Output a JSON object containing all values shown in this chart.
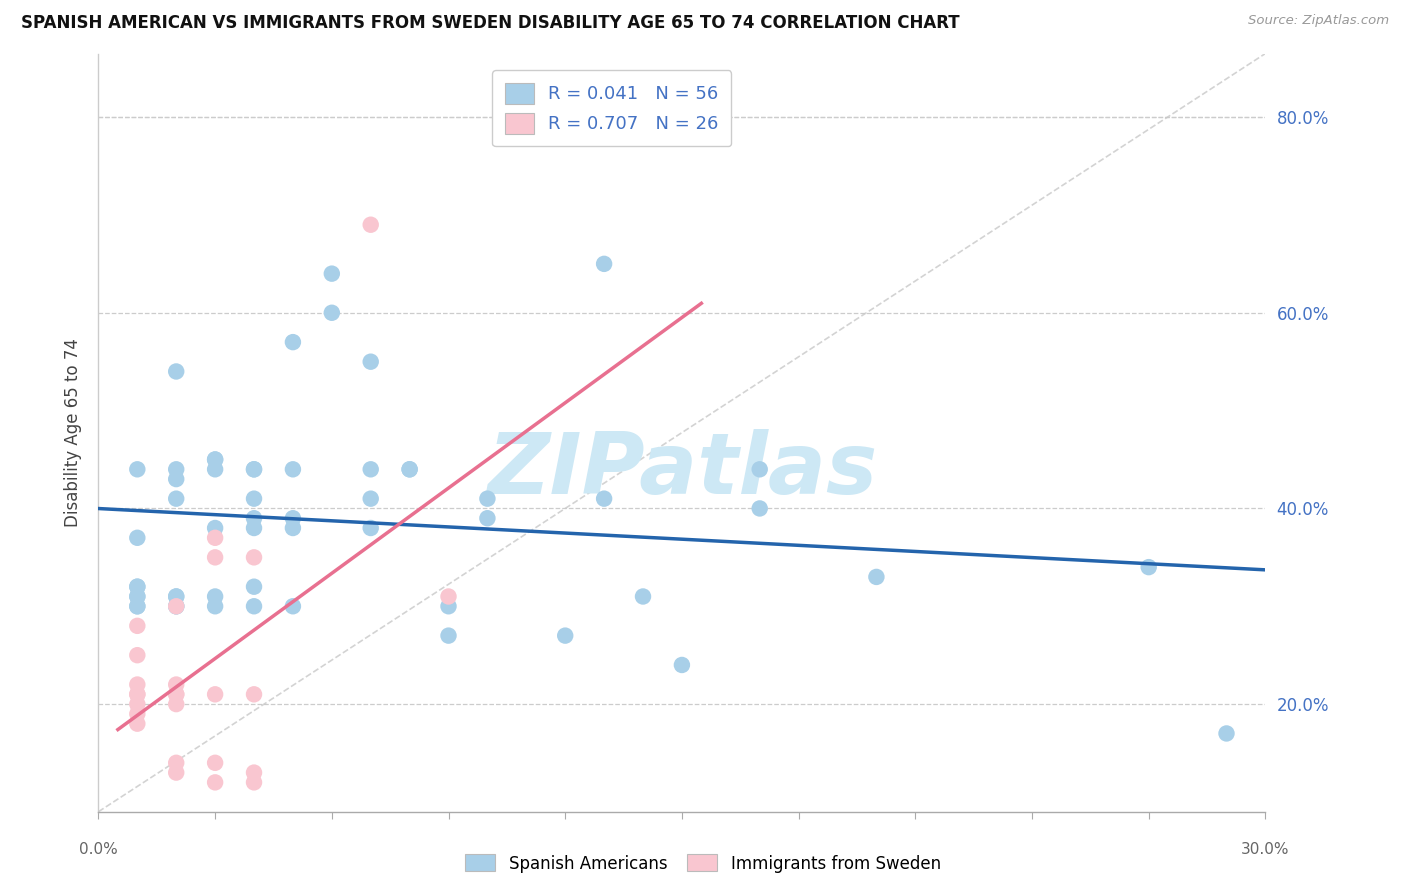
{
  "title": "SPANISH AMERICAN VS IMMIGRANTS FROM SWEDEN DISABILITY AGE 65 TO 74 CORRELATION CHART",
  "source": "Source: ZipAtlas.com",
  "ylabel": "Disability Age 65 to 74",
  "xlim": [
    0.0,
    0.3
  ],
  "ylim": [
    0.09,
    0.865
  ],
  "blue_color": "#a8cfe8",
  "blue_edge_color": "#a8cfe8",
  "pink_color": "#f9c6d0",
  "pink_edge_color": "#f9c6d0",
  "blue_line_color": "#2464ac",
  "pink_line_color": "#e87090",
  "blue_R": "0.041",
  "blue_N": "56",
  "pink_R": "0.707",
  "pink_N": "26",
  "legend_label_blue": "Spanish Americans",
  "legend_label_pink": "Immigrants from Sweden",
  "legend_text_color": "#4472c4",
  "ytick_values": [
    0.2,
    0.4,
    0.6,
    0.8
  ],
  "ytick_labels": [
    "20.0%",
    "40.0%",
    "60.0%",
    "80.0%"
  ],
  "grid_values": [
    0.2,
    0.4,
    0.6,
    0.8
  ],
  "blue_points": [
    [
      0.01,
      0.37
    ],
    [
      0.01,
      0.44
    ],
    [
      0.01,
      0.3
    ],
    [
      0.01,
      0.31
    ],
    [
      0.01,
      0.32
    ],
    [
      0.01,
      0.31
    ],
    [
      0.01,
      0.32
    ],
    [
      0.01,
      0.3
    ],
    [
      0.02,
      0.3
    ],
    [
      0.02,
      0.31
    ],
    [
      0.02,
      0.54
    ],
    [
      0.02,
      0.43
    ],
    [
      0.02,
      0.3
    ],
    [
      0.02,
      0.44
    ],
    [
      0.02,
      0.41
    ],
    [
      0.02,
      0.31
    ],
    [
      0.03,
      0.3
    ],
    [
      0.03,
      0.31
    ],
    [
      0.03,
      0.38
    ],
    [
      0.03,
      0.45
    ],
    [
      0.03,
      0.45
    ],
    [
      0.03,
      0.44
    ],
    [
      0.04,
      0.32
    ],
    [
      0.04,
      0.3
    ],
    [
      0.04,
      0.44
    ],
    [
      0.04,
      0.41
    ],
    [
      0.04,
      0.39
    ],
    [
      0.04,
      0.44
    ],
    [
      0.04,
      0.38
    ],
    [
      0.05,
      0.3
    ],
    [
      0.05,
      0.39
    ],
    [
      0.05,
      0.38
    ],
    [
      0.05,
      0.44
    ],
    [
      0.05,
      0.57
    ],
    [
      0.06,
      0.64
    ],
    [
      0.06,
      0.6
    ],
    [
      0.07,
      0.55
    ],
    [
      0.07,
      0.44
    ],
    [
      0.07,
      0.41
    ],
    [
      0.07,
      0.38
    ],
    [
      0.08,
      0.44
    ],
    [
      0.08,
      0.44
    ],
    [
      0.09,
      0.3
    ],
    [
      0.09,
      0.27
    ],
    [
      0.1,
      0.41
    ],
    [
      0.1,
      0.39
    ],
    [
      0.12,
      0.27
    ],
    [
      0.13,
      0.41
    ],
    [
      0.13,
      0.65
    ],
    [
      0.14,
      0.31
    ],
    [
      0.15,
      0.24
    ],
    [
      0.17,
      0.4
    ],
    [
      0.17,
      0.44
    ],
    [
      0.2,
      0.33
    ],
    [
      0.27,
      0.34
    ],
    [
      0.29,
      0.17
    ]
  ],
  "pink_points": [
    [
      0.01,
      0.28
    ],
    [
      0.01,
      0.22
    ],
    [
      0.01,
      0.25
    ],
    [
      0.01,
      0.21
    ],
    [
      0.01,
      0.21
    ],
    [
      0.01,
      0.2
    ],
    [
      0.01,
      0.19
    ],
    [
      0.01,
      0.18
    ],
    [
      0.02,
      0.3
    ],
    [
      0.02,
      0.22
    ],
    [
      0.02,
      0.21
    ],
    [
      0.02,
      0.21
    ],
    [
      0.02,
      0.2
    ],
    [
      0.02,
      0.14
    ],
    [
      0.02,
      0.13
    ],
    [
      0.03,
      0.37
    ],
    [
      0.03,
      0.35
    ],
    [
      0.03,
      0.21
    ],
    [
      0.03,
      0.14
    ],
    [
      0.03,
      0.12
    ],
    [
      0.04,
      0.35
    ],
    [
      0.04,
      0.21
    ],
    [
      0.04,
      0.13
    ],
    [
      0.04,
      0.12
    ],
    [
      0.07,
      0.69
    ],
    [
      0.09,
      0.31
    ]
  ],
  "watermark": "ZIPatlas",
  "watermark_color": "#cde8f5"
}
